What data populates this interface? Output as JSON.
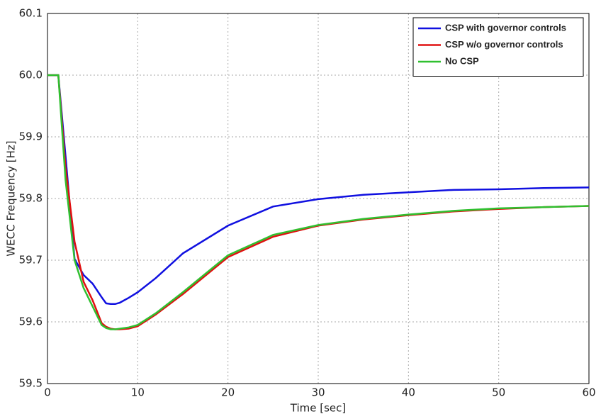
{
  "chart_data": {
    "type": "line",
    "xlabel": "Time [sec]",
    "ylabel": "WECC Frequency [Hz]",
    "x": [
      0,
      1,
      1.2,
      2,
      3,
      4,
      5,
      6,
      6.5,
      7,
      7.5,
      8,
      9,
      10,
      12,
      15,
      20,
      25,
      30,
      35,
      40,
      45,
      50,
      55,
      60
    ],
    "series": [
      {
        "name": "CSP with governor controls",
        "color": "#1010e0",
        "values": [
          60,
          60,
          60,
          59.869,
          59.702,
          59.676,
          59.662,
          59.64,
          59.63,
          59.629,
          59.629,
          59.631,
          59.639,
          59.648,
          59.671,
          59.711,
          59.756,
          59.787,
          59.799,
          59.806,
          59.81,
          59.814,
          59.815,
          59.817,
          59.818
        ]
      },
      {
        "name": "CSP w/o governor controls",
        "color": "#e01010",
        "values": [
          60,
          60,
          60,
          59.85,
          59.73,
          59.665,
          59.635,
          59.598,
          59.592,
          59.589,
          59.588,
          59.588,
          59.589,
          59.593,
          59.612,
          59.645,
          59.705,
          59.738,
          59.756,
          59.766,
          59.773,
          59.779,
          59.783,
          59.786,
          59.788
        ]
      },
      {
        "name": "No CSP",
        "color": "#30c030",
        "values": [
          60,
          60,
          60,
          59.83,
          59.7,
          59.655,
          59.625,
          59.595,
          59.59,
          59.588,
          59.588,
          59.589,
          59.591,
          59.595,
          59.614,
          59.648,
          59.708,
          59.741,
          59.757,
          59.767,
          59.774,
          59.78,
          59.784,
          59.786,
          59.788
        ]
      }
    ],
    "xlim": [
      0,
      60
    ],
    "xticks": [
      0,
      10,
      20,
      30,
      40,
      50,
      60
    ],
    "ylim": [
      59.5,
      60.1
    ],
    "yticks": [
      59.5,
      59.6,
      59.7,
      59.8,
      59.9,
      {
        "value": 60,
        "label": "60.0"
      },
      60.1
    ],
    "grid": true,
    "legend": "upper right"
  }
}
